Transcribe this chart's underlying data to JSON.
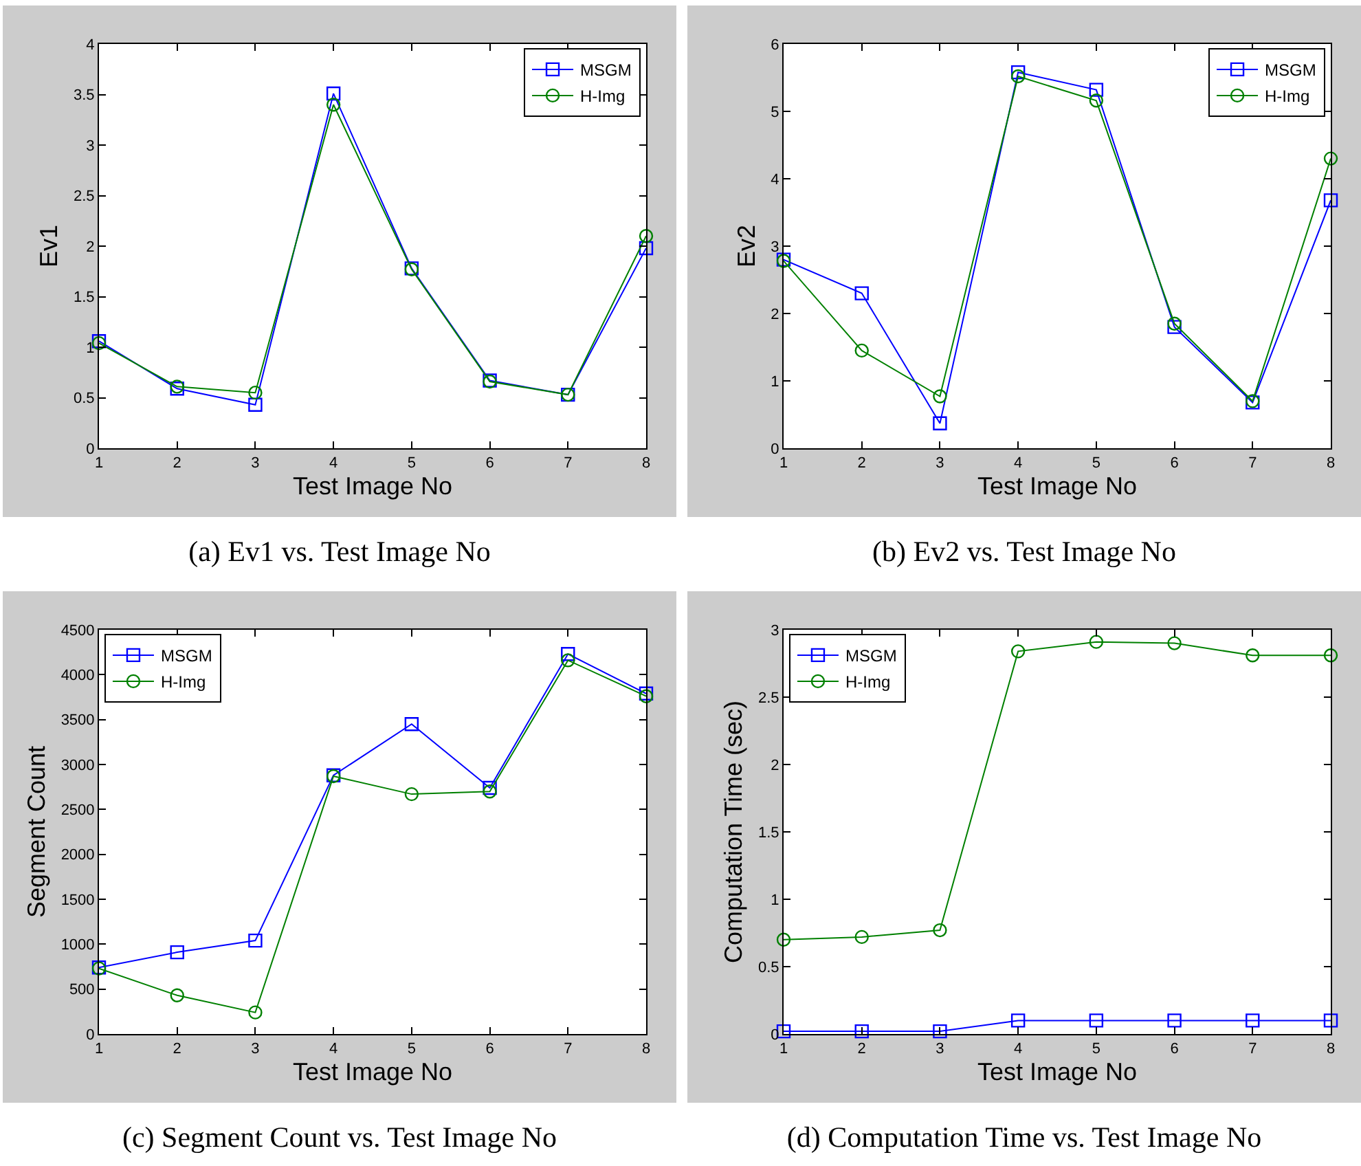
{
  "chart_data": [
    {
      "type": "line",
      "xlabel": "Test Image No",
      "ylabel": "Ev1",
      "annotations": [
        "(a) Ev1 vs. Test Image No"
      ],
      "x": [
        1,
        2,
        3,
        4,
        5,
        6,
        7,
        8
      ],
      "xlim": [
        1,
        8
      ],
      "xticks": [
        1,
        2,
        3,
        4,
        5,
        6,
        7,
        8
      ],
      "ylim": [
        0,
        4
      ],
      "yticks": [
        0,
        0.5,
        1,
        1.5,
        2,
        2.5,
        3,
        3.5,
        4
      ],
      "grid": false,
      "legend": "top right",
      "series": [
        {
          "name": "MSGM",
          "color": "#0000ff",
          "marker": "square",
          "values": [
            1.06,
            0.59,
            0.43,
            3.51,
            1.78,
            0.67,
            0.53,
            1.98
          ]
        },
        {
          "name": "H-Img",
          "color": "#008000",
          "marker": "circle",
          "values": [
            1.04,
            0.61,
            0.55,
            3.4,
            1.77,
            0.66,
            0.53,
            2.1
          ]
        }
      ]
    },
    {
      "type": "line",
      "xlabel": "Test Image No",
      "ylabel": "Ev2",
      "annotations": [
        "(b) Ev2 vs. Test Image No"
      ],
      "x": [
        1,
        2,
        3,
        4,
        5,
        6,
        7,
        8
      ],
      "xlim": [
        1,
        8
      ],
      "xticks": [
        1,
        2,
        3,
        4,
        5,
        6,
        7,
        8
      ],
      "ylim": [
        0,
        6
      ],
      "yticks": [
        0,
        1,
        2,
        3,
        4,
        5,
        6
      ],
      "grid": false,
      "legend": "top right",
      "series": [
        {
          "name": "MSGM",
          "color": "#0000ff",
          "marker": "square",
          "values": [
            2.8,
            2.3,
            0.37,
            5.58,
            5.32,
            1.8,
            0.68,
            3.68
          ]
        },
        {
          "name": "H-Img",
          "color": "#008000",
          "marker": "circle",
          "values": [
            2.78,
            1.45,
            0.77,
            5.52,
            5.16,
            1.85,
            0.7,
            4.3
          ]
        }
      ]
    },
    {
      "type": "line",
      "xlabel": "Test Image No",
      "ylabel": "Segment Count",
      "annotations": [
        "(c) Segment Count vs. Test Image No"
      ],
      "x": [
        1,
        2,
        3,
        4,
        5,
        6,
        7,
        8
      ],
      "xlim": [
        1,
        8
      ],
      "xticks": [
        1,
        2,
        3,
        4,
        5,
        6,
        7,
        8
      ],
      "ylim": [
        0,
        4500
      ],
      "yticks": [
        0,
        500,
        1000,
        1500,
        2000,
        2500,
        3000,
        3500,
        4000,
        4500
      ],
      "grid": false,
      "legend": "top left",
      "series": [
        {
          "name": "MSGM",
          "color": "#0000ff",
          "marker": "square",
          "values": [
            740,
            910,
            1040,
            2880,
            3450,
            2740,
            4230,
            3790
          ]
        },
        {
          "name": "H-Img",
          "color": "#008000",
          "marker": "circle",
          "values": [
            730,
            430,
            240,
            2870,
            2670,
            2700,
            4160,
            3760
          ]
        }
      ]
    },
    {
      "type": "line",
      "xlabel": "Test Image No",
      "ylabel": "Computation Time (sec)",
      "annotations": [
        "(d) Computation Time vs. Test Image No"
      ],
      "x": [
        1,
        2,
        3,
        4,
        5,
        6,
        7,
        8
      ],
      "xlim": [
        1,
        8
      ],
      "xticks": [
        1,
        2,
        3,
        4,
        5,
        6,
        7,
        8
      ],
      "ylim": [
        0,
        3
      ],
      "yticks": [
        0,
        0.5,
        1,
        1.5,
        2,
        2.5,
        3
      ],
      "grid": false,
      "legend": "top left",
      "series": [
        {
          "name": "MSGM",
          "color": "#0000ff",
          "marker": "square",
          "values": [
            0.02,
            0.02,
            0.02,
            0.1,
            0.1,
            0.1,
            0.1,
            0.1
          ]
        },
        {
          "name": "H-Img",
          "color": "#008000",
          "marker": "circle",
          "values": [
            0.7,
            0.72,
            0.77,
            2.84,
            2.91,
            2.9,
            2.81,
            2.81
          ]
        }
      ]
    }
  ]
}
